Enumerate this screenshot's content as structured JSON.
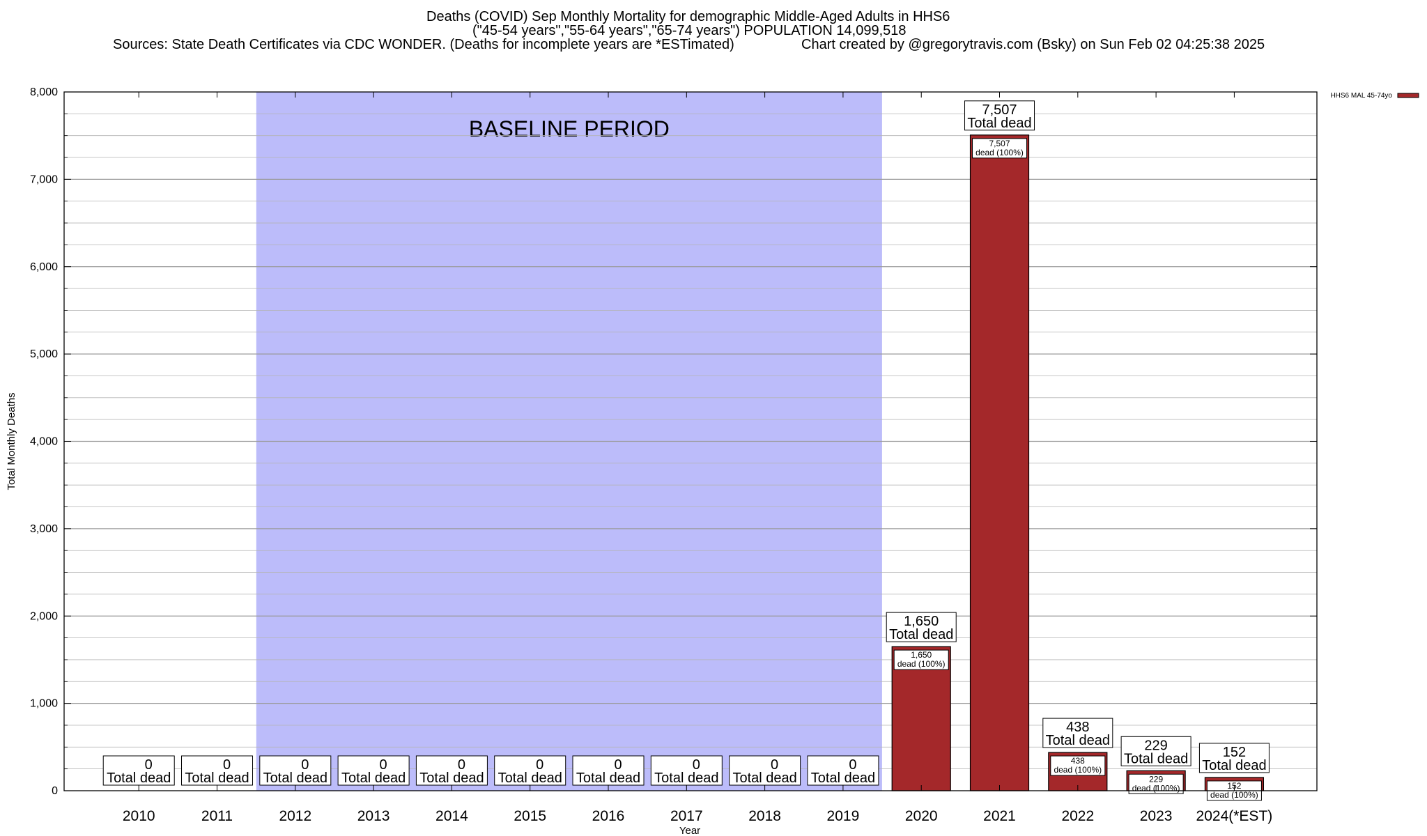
{
  "titles": {
    "line1": "Deaths (COVID) Sep Monthly Mortality for demographic Middle-Aged Adults in HHS6",
    "line2": "(\"45-54 years\",\"55-64 years\",\"65-74 years\") POPULATION 14,099,518",
    "line3": "Sources: State Death Certificates via CDC WONDER. (Deaths for incomplete years are *ESTimated)",
    "credit": "Chart created by @gregorytravis.com (Bsky) on Sun Feb 02 04:25:38 2025"
  },
  "colors": {
    "bar": "#a4282a",
    "baseline_shade": "#bcbcfa",
    "grid": "#b4b4b4"
  },
  "chart_data": {
    "type": "bar",
    "xlabel": "Year",
    "ylabel": "Total Monthly Deaths",
    "ylim": [
      0,
      8000
    ],
    "yticks": [
      0,
      1000,
      2000,
      3000,
      4000,
      5000,
      6000,
      7000,
      8000
    ],
    "ytick_labels": [
      "0",
      "1,000",
      "2,000",
      "3,000",
      "4,000",
      "5,000",
      "6,000",
      "7,000",
      "8,000"
    ],
    "categories": [
      "2010",
      "2011",
      "2012",
      "2013",
      "2014",
      "2015",
      "2016",
      "2017",
      "2018",
      "2019",
      "2020",
      "2021",
      "2022",
      "2023",
      "2024(*EST)"
    ],
    "series": [
      {
        "name": "HHS6 MAL 45-74yo",
        "values": [
          0,
          0,
          0,
          0,
          0,
          0,
          0,
          0,
          0,
          0,
          1650,
          7507,
          438,
          229,
          152
        ]
      }
    ],
    "total_labels": [
      "0",
      "0",
      "0",
      "0",
      "0",
      "0",
      "0",
      "0",
      "0",
      "0",
      "1,650",
      "7,507",
      "438",
      "229",
      "152"
    ],
    "total_caption": "Total dead",
    "inner_caption": "dead (100%)",
    "baseline_period": {
      "label": "BASELINE PERIOD",
      "from": "2012",
      "to": "2019"
    },
    "legend_position": "top-right",
    "grid": true
  }
}
